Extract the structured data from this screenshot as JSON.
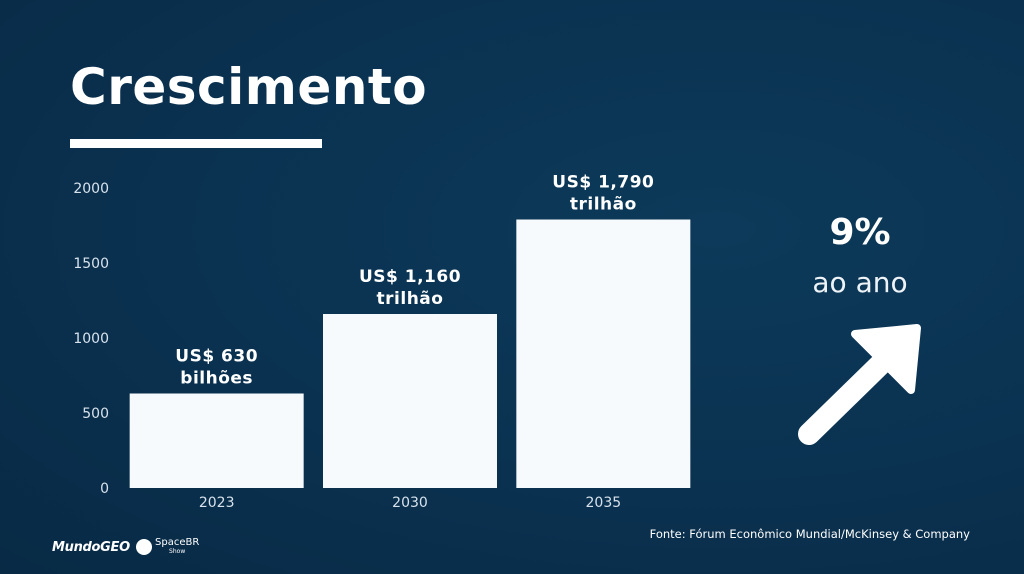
{
  "slide": {
    "title": "Crescimento",
    "growth_rate": "9%",
    "growth_text": "ao ano",
    "source": "Fonte: Fórum Econômico Mundial/McKinsey & Company",
    "logos": {
      "mundogeo": "MundoGEO",
      "spacebr": "SpaceBR",
      "spacebr_sub": "Show"
    }
  },
  "chart_data": {
    "type": "bar",
    "title": "",
    "xlabel": "",
    "ylabel": "",
    "categories": [
      "2023",
      "2030",
      "2035"
    ],
    "values": [
      630,
      1160,
      1790
    ],
    "data_labels": [
      [
        "US$ 630",
        "bilhões"
      ],
      [
        "US$ 1,160",
        "trilhão"
      ],
      [
        "US$ 1,790",
        "trilhão"
      ]
    ],
    "ylim": [
      0,
      2000
    ],
    "yticks": [
      0,
      500,
      1000,
      1500,
      2000
    ],
    "grid": false,
    "colors": {
      "bar": "#f7fafc",
      "background": "#0a3150",
      "text": "#ffffff"
    }
  }
}
